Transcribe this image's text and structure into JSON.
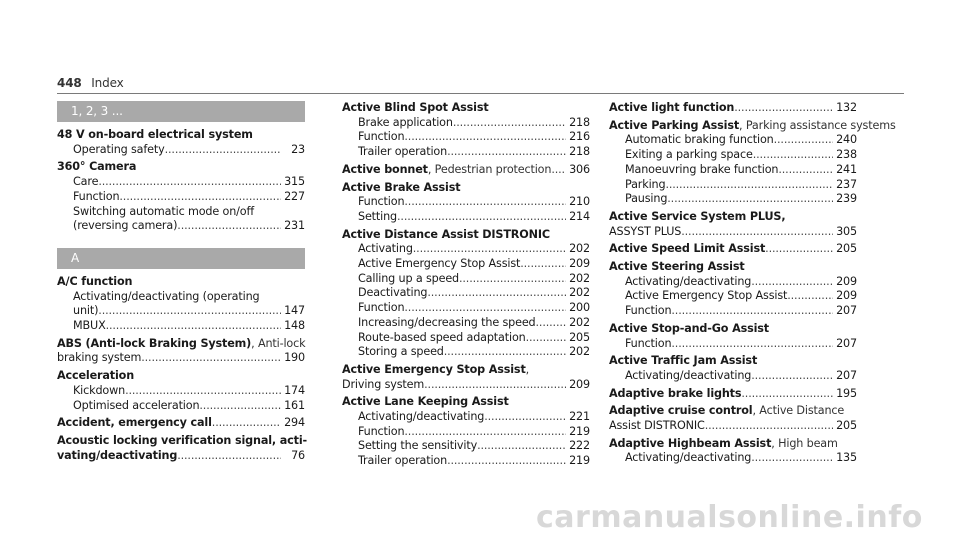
{
  "header": {
    "page_number": "448",
    "title": "Index"
  },
  "columns": [
    [
      {
        "type": "section",
        "label": "1, 2, 3 ..."
      },
      {
        "type": "entry",
        "lines": [
          {
            "text": "48 V on-board electrical system",
            "bold": true
          },
          {
            "text": "Operating safety",
            "page": "23",
            "sub": true
          }
        ]
      },
      {
        "type": "entry",
        "lines": [
          {
            "text": "360° Camera",
            "bold": true
          },
          {
            "text": "Care",
            "page": "315",
            "sub": true
          },
          {
            "text": "Function",
            "page": "227",
            "sub": true
          },
          {
            "text": "Switching automatic mode on/off",
            "sub": true
          },
          {
            "text": "(reversing camera)",
            "page": "231",
            "sub": true
          }
        ]
      },
      {
        "type": "section",
        "label": "A"
      },
      {
        "type": "entry",
        "lines": [
          {
            "text": "A/C function",
            "bold": true
          },
          {
            "text": "Activating/deactivating (operating",
            "sub": true
          },
          {
            "text": "unit)",
            "page": "147",
            "sub": true
          },
          {
            "text": "MBUX",
            "page": "148",
            "sub": true
          }
        ]
      },
      {
        "type": "entry",
        "lines": [
          {
            "text": "ABS (Anti-lock Braking System)",
            "bold": true,
            "note": ", Anti-lock"
          },
          {
            "text": "braking system",
            "page": "190"
          }
        ]
      },
      {
        "type": "entry",
        "lines": [
          {
            "text": "Acceleration",
            "bold": true
          },
          {
            "text": "Kickdown",
            "page": "174",
            "sub": true
          },
          {
            "text": "Optimised acceleration",
            "page": "161",
            "sub": true
          }
        ]
      },
      {
        "type": "entry",
        "lines": [
          {
            "text": "Accident, emergency call",
            "bold": true,
            "page": "294"
          }
        ]
      },
      {
        "type": "entry",
        "lines": [
          {
            "text": "Acoustic locking verification signal, acti-",
            "bold": true
          },
          {
            "text": "vating/deactivating",
            "bold": true,
            "page": "76"
          }
        ]
      }
    ],
    [
      {
        "type": "entry",
        "lines": [
          {
            "text": "Active Blind Spot Assist",
            "bold": true
          },
          {
            "text": "Brake application",
            "page": "218",
            "sub": true
          },
          {
            "text": "Function",
            "page": "216",
            "sub": true
          },
          {
            "text": "Trailer operation",
            "page": "218",
            "sub": true
          }
        ]
      },
      {
        "type": "entry",
        "lines": [
          {
            "text": "Active bonnet",
            "bold": true,
            "note": ", Pedestrian protection",
            "page": "306"
          }
        ]
      },
      {
        "type": "entry",
        "lines": [
          {
            "text": "Active Brake Assist",
            "bold": true
          },
          {
            "text": "Function",
            "page": "210",
            "sub": true
          },
          {
            "text": "Setting",
            "page": "214",
            "sub": true
          }
        ]
      },
      {
        "type": "entry",
        "lines": [
          {
            "text": "Active Distance Assist DISTRONIC",
            "bold": true
          },
          {
            "text": "Activating",
            "page": "202",
            "sub": true
          },
          {
            "text": "Active Emergency Stop Assist",
            "page": "209",
            "sub": true
          },
          {
            "text": "Calling up a speed",
            "page": "202",
            "sub": true
          },
          {
            "text": "Deactivating",
            "page": "202",
            "sub": true
          },
          {
            "text": "Function",
            "page": "200",
            "sub": true
          },
          {
            "text": "Increasing/decreasing the speed",
            "page": "202",
            "sub": true
          },
          {
            "text": "Route-based speed adaptation",
            "page": "205",
            "sub": true
          },
          {
            "text": "Storing a speed",
            "page": "202",
            "sub": true
          }
        ]
      },
      {
        "type": "entry",
        "lines": [
          {
            "text": "Active Emergency Stop Assist",
            "bold": true,
            "note": ","
          },
          {
            "text": "Driving system",
            "page": "209"
          }
        ]
      },
      {
        "type": "entry",
        "lines": [
          {
            "text": "Active Lane Keeping Assist",
            "bold": true
          },
          {
            "text": "Activating/deactivating",
            "page": "221",
            "sub": true
          },
          {
            "text": "Function",
            "page": "219",
            "sub": true
          },
          {
            "text": "Setting the sensitivity",
            "page": "222",
            "sub": true
          },
          {
            "text": "Trailer operation",
            "page": "219",
            "sub": true
          }
        ]
      }
    ],
    [
      {
        "type": "entry",
        "lines": [
          {
            "text": "Active light function",
            "bold": true,
            "page": "132"
          }
        ]
      },
      {
        "type": "entry",
        "lines": [
          {
            "text": "Active Parking Assist",
            "bold": true,
            "note": ", Parking assistance systems"
          },
          {
            "text": "Automatic braking function",
            "page": "240",
            "sub": true
          },
          {
            "text": "Exiting a parking space",
            "page": "238",
            "sub": true
          },
          {
            "text": "Manoeuvring brake function",
            "page": "241",
            "sub": true
          },
          {
            "text": "Parking",
            "page": "237",
            "sub": true
          },
          {
            "text": "Pausing",
            "page": "239",
            "sub": true
          }
        ]
      },
      {
        "type": "entry",
        "lines": [
          {
            "text": "Active Service System PLUS,",
            "bold": true
          },
          {
            "text": "ASSYST PLUS",
            "page": "305"
          }
        ]
      },
      {
        "type": "entry",
        "lines": [
          {
            "text": "Active Speed Limit Assist",
            "bold": true,
            "page": "205"
          }
        ]
      },
      {
        "type": "entry",
        "lines": [
          {
            "text": "Active Steering Assist",
            "bold": true
          },
          {
            "text": "Activating/deactivating",
            "page": "209",
            "sub": true
          },
          {
            "text": "Active Emergency Stop Assist",
            "page": "209",
            "sub": true
          },
          {
            "text": "Function",
            "page": "207",
            "sub": true
          }
        ]
      },
      {
        "type": "entry",
        "lines": [
          {
            "text": "Active Stop-and-Go Assist",
            "bold": true
          },
          {
            "text": "Function",
            "page": "207",
            "sub": true
          }
        ]
      },
      {
        "type": "entry",
        "lines": [
          {
            "text": "Active Traffic Jam Assist",
            "bold": true
          },
          {
            "text": "Activating/deactivating",
            "page": "207",
            "sub": true
          }
        ]
      },
      {
        "type": "entry",
        "lines": [
          {
            "text": "Adaptive brake lights",
            "bold": true,
            "page": "195"
          }
        ]
      },
      {
        "type": "entry",
        "lines": [
          {
            "text": "Adaptive cruise control",
            "bold": true,
            "note": ", Active Distance"
          },
          {
            "text": "Assist DISTRONIC",
            "page": "205"
          }
        ]
      },
      {
        "type": "entry",
        "lines": [
          {
            "text": "Adaptive Highbeam Assist",
            "bold": true,
            "note": ", High beam"
          },
          {
            "text": "Activating/deactivating",
            "page": "135",
            "sub": true
          }
        ]
      }
    ]
  ],
  "watermark": "carmanualsonline.info"
}
